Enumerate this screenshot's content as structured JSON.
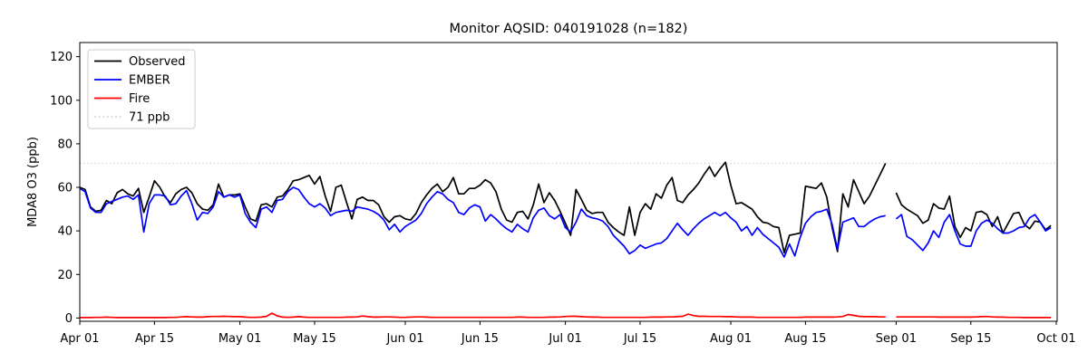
{
  "page": {
    "title": "Monitor AQSID: 040191028 (n=182)"
  },
  "chart_data": {
    "type": "line",
    "title": "Monitor AQSID: 040191028 (n=182)",
    "xlabel": "",
    "ylabel": "MDA8 O3 (ppb)",
    "ylim": [
      0,
      120
    ],
    "y_ticks": [
      0,
      20,
      40,
      60,
      80,
      100,
      120
    ],
    "x_tick_labels": [
      "Apr 01",
      "Apr 15",
      "May 01",
      "May 15",
      "Jun 01",
      "Jun 15",
      "Jul 01",
      "Jul 15",
      "Aug 01",
      "Aug 15",
      "Sep 01",
      "Sep 15",
      "Oct 01"
    ],
    "x_tick_days": [
      0,
      14,
      30,
      44,
      61,
      75,
      91,
      105,
      122,
      136,
      153,
      167,
      183
    ],
    "x_description": "daily values; day 0 = Apr 01, day 182 = Sep 30; day 152 (Aug 31) missing (n=182)",
    "grid": false,
    "legend_position": "upper left",
    "threshold": {
      "value": 71,
      "label": "71 ppb",
      "color": "#d9d9d9"
    },
    "series": [
      {
        "name": "Observed",
        "color": "#000000",
        "style": "solid",
        "values": [
          60,
          59,
          51,
          49,
          49.5,
          54,
          52.5,
          57.5,
          59,
          57,
          56,
          59.5,
          48.5,
          55.5,
          63,
          60,
          55.5,
          53,
          57,
          59,
          60,
          57.5,
          52.5,
          50,
          49.5,
          52,
          61.5,
          55.5,
          56.5,
          56.5,
          57,
          51,
          45.5,
          44.5,
          52,
          52.5,
          51,
          55.5,
          56,
          59,
          63,
          63.5,
          64.5,
          65.5,
          61.5,
          65,
          56,
          49,
          60,
          61,
          53,
          45.5,
          54.5,
          55.5,
          54,
          54,
          52,
          46.5,
          44,
          46.5,
          47,
          45.5,
          45,
          48,
          53,
          56.5,
          59.5,
          61.5,
          58,
          60,
          64.5,
          57,
          57,
          59.5,
          59.5,
          61,
          63.5,
          62,
          58,
          50,
          45,
          44,
          48.5,
          49,
          45.5,
          52,
          61.5,
          53,
          57.5,
          54,
          49,
          43.5,
          38,
          59,
          54.5,
          49.5,
          48,
          48.5,
          48.5,
          44,
          41.5,
          39.5,
          38,
          51,
          38,
          48.5,
          52.5,
          50,
          57,
          55,
          61,
          64.5,
          54,
          53,
          56.5,
          59,
          62,
          66,
          69.5,
          65,
          68.5,
          71.5,
          61,
          52.5,
          53,
          51.5,
          50,
          46.5,
          44,
          43.5,
          42,
          41.5,
          30,
          38,
          38.5,
          39,
          60.5,
          60,
          59.5,
          62,
          55.5,
          41.5,
          30.5,
          57,
          51,
          63.5,
          58,
          52.5,
          56,
          61,
          66,
          71,
          null,
          57.5,
          52,
          50,
          48.5,
          47,
          43.5,
          45,
          52.5,
          50.5,
          50,
          56,
          42,
          37,
          41.5,
          40,
          48.5,
          49,
          47.5,
          42,
          46.5,
          39,
          43.5,
          48,
          48.5,
          43,
          41,
          44.5,
          44,
          40.5,
          42.5
        ]
      },
      {
        "name": "EMBER",
        "color": "#0000ff",
        "style": "solid",
        "values": [
          59.5,
          58,
          50.5,
          48.5,
          48.5,
          52.5,
          53.5,
          54.5,
          55.5,
          56,
          54.5,
          56.5,
          39.5,
          52.5,
          56.5,
          56.5,
          56,
          52,
          52.5,
          56,
          58.5,
          52.5,
          45,
          48.5,
          48,
          51,
          58,
          55.5,
          56.5,
          55.5,
          56.5,
          48,
          44,
          41.5,
          50,
          51,
          48.5,
          54,
          54.5,
          58,
          60,
          59,
          55.5,
          52.5,
          51,
          52.5,
          50.5,
          47,
          48.5,
          49,
          49.5,
          49,
          51,
          50.5,
          50,
          49,
          47.5,
          45,
          40.5,
          43,
          39.5,
          42,
          43.5,
          45,
          48,
          52.5,
          55.5,
          58,
          57,
          54.5,
          53,
          48.5,
          47.5,
          50.5,
          52,
          51,
          44.5,
          47.5,
          45.5,
          43,
          41,
          39.5,
          43,
          41,
          39.5,
          46,
          49.5,
          50.5,
          47,
          45.5,
          47.5,
          41.5,
          39.5,
          44,
          50,
          47,
          46,
          45.5,
          44.5,
          42,
          38,
          35.5,
          33,
          29.5,
          31,
          33.5,
          32,
          33,
          34,
          34.5,
          36.5,
          40,
          43.5,
          40.5,
          38,
          41,
          43.5,
          45.5,
          47,
          48.5,
          47,
          48.5,
          46,
          44,
          40,
          42,
          38,
          41.5,
          38.5,
          36.5,
          34.5,
          32.5,
          28,
          34,
          28.5,
          37,
          43.5,
          46.5,
          48.5,
          49,
          50,
          43,
          31.5,
          44,
          45,
          46,
          42,
          42,
          44,
          45.5,
          46.5,
          47,
          null,
          45.5,
          47.5,
          37.5,
          36,
          33.5,
          31,
          34.5,
          40,
          37,
          44,
          47.5,
          40,
          34,
          33,
          33,
          40,
          43.5,
          45,
          43.5,
          41,
          39,
          39,
          40,
          41.5,
          42,
          46,
          47.5,
          44,
          40,
          41.5
        ]
      },
      {
        "name": "Fire",
        "color": "#ff0000",
        "style": "solid",
        "values": [
          0.2,
          0.2,
          0.2,
          0.3,
          0.3,
          0.4,
          0.3,
          0.2,
          0.2,
          0.2,
          0.2,
          0.2,
          0.2,
          0.2,
          0.2,
          0.2,
          0.2,
          0.3,
          0.3,
          0.5,
          0.6,
          0.5,
          0.4,
          0.4,
          0.6,
          0.7,
          0.7,
          0.8,
          0.7,
          0.6,
          0.6,
          0.4,
          0.3,
          0.3,
          0.4,
          0.8,
          2.2,
          1.0,
          0.4,
          0.3,
          0.4,
          0.6,
          0.4,
          0.3,
          0.3,
          0.3,
          0.3,
          0.3,
          0.3,
          0.3,
          0.4,
          0.4,
          0.5,
          0.9,
          0.6,
          0.4,
          0.4,
          0.5,
          0.5,
          0.4,
          0.3,
          0.3,
          0.4,
          0.5,
          0.5,
          0.4,
          0.3,
          0.3,
          0.3,
          0.3,
          0.3,
          0.3,
          0.3,
          0.3,
          0.3,
          0.3,
          0.3,
          0.3,
          0.3,
          0.3,
          0.3,
          0.3,
          0.4,
          0.4,
          0.3,
          0.3,
          0.3,
          0.3,
          0.4,
          0.4,
          0.5,
          0.7,
          0.8,
          0.8,
          0.6,
          0.5,
          0.4,
          0.4,
          0.3,
          0.3,
          0.3,
          0.3,
          0.3,
          0.3,
          0.3,
          0.3,
          0.3,
          0.4,
          0.4,
          0.4,
          0.5,
          0.5,
          0.6,
          0.8,
          1.8,
          1.1,
          0.8,
          0.8,
          0.7,
          0.7,
          0.7,
          0.6,
          0.6,
          0.5,
          0.4,
          0.4,
          0.4,
          0.3,
          0.3,
          0.3,
          0.3,
          0.3,
          0.3,
          0.3,
          0.3,
          0.3,
          0.4,
          0.4,
          0.4,
          0.4,
          0.4,
          0.4,
          0.5,
          0.7,
          1.6,
          1.2,
          0.8,
          0.6,
          0.6,
          0.6,
          0.5,
          0.5,
          null,
          0.5,
          0.5,
          0.5,
          0.5,
          0.5,
          0.5,
          0.5,
          0.5,
          0.4,
          0.4,
          0.4,
          0.4,
          0.4,
          0.4,
          0.4,
          0.5,
          0.6,
          0.7,
          0.5,
          0.4,
          0.4,
          0.3,
          0.3,
          0.3,
          0.2,
          0.2,
          0.2,
          0.2,
          0.2,
          0.2
        ]
      }
    ]
  }
}
